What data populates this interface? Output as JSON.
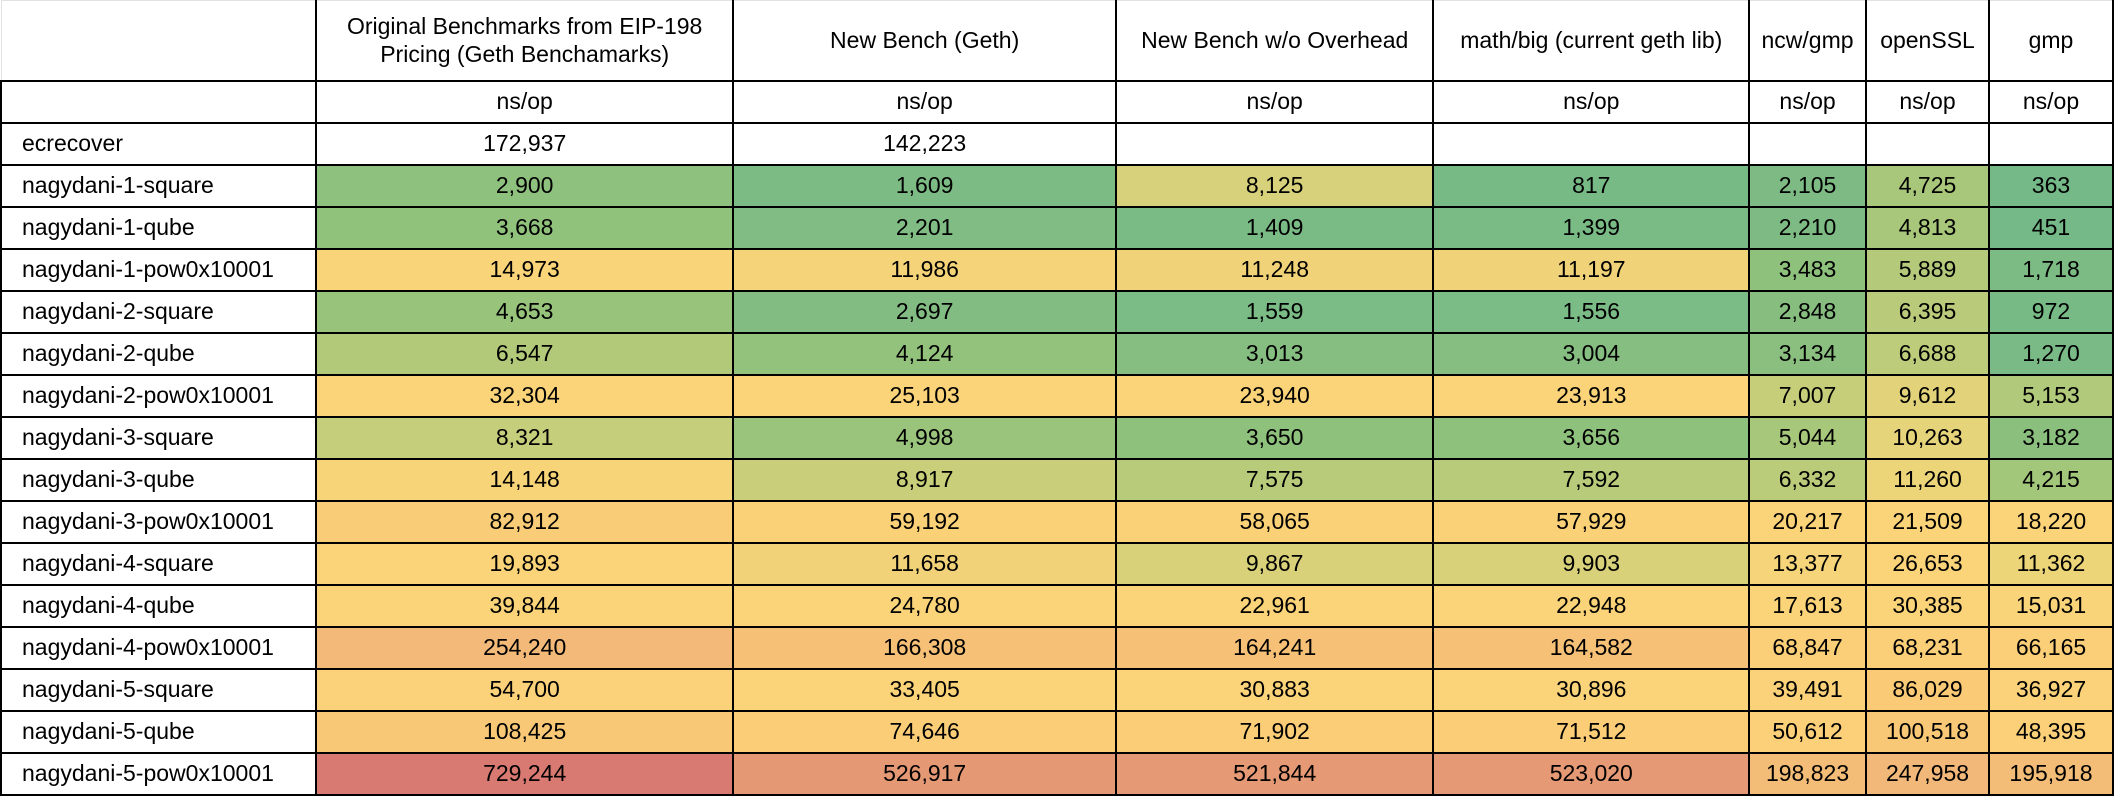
{
  "columns": [
    {
      "header": "",
      "unit": ""
    },
    {
      "header": "Original Benchmarks from EIP-198 Pricing (Geth Benchamarks)",
      "unit": "ns/op"
    },
    {
      "header": "New Bench (Geth)",
      "unit": "ns/op"
    },
    {
      "header": "New Bench w/o Overhead",
      "unit": "ns/op"
    },
    {
      "header": "math/big (current geth lib)",
      "unit": "ns/op"
    },
    {
      "header": "ncw/gmp",
      "unit": "ns/op"
    },
    {
      "header": "openSSL",
      "unit": "ns/op"
    },
    {
      "header": "gmp",
      "unit": "ns/op"
    }
  ],
  "rows": [
    {
      "label": "ecrecover",
      "cells": [
        {
          "value": "172,937",
          "color": "#ffffff"
        },
        {
          "value": "142,223",
          "color": "#ffffff"
        },
        {
          "value": "",
          "color": "#ffffff"
        },
        {
          "value": "",
          "color": "#ffffff"
        },
        {
          "value": "",
          "color": "#ffffff"
        },
        {
          "value": "",
          "color": "#ffffff"
        },
        {
          "value": "",
          "color": "#ffffff"
        }
      ]
    },
    {
      "label": "nagydani-1-square",
      "cells": [
        {
          "value": "2,900",
          "color": "#8dc17d"
        },
        {
          "value": "1,609",
          "color": "#7dbb85"
        },
        {
          "value": "8,125",
          "color": "#d6d17a"
        },
        {
          "value": "817",
          "color": "#77ba86"
        },
        {
          "value": "2,105",
          "color": "#7ebb84"
        },
        {
          "value": "4,725",
          "color": "#a8c77a"
        },
        {
          "value": "363",
          "color": "#74b987"
        }
      ]
    },
    {
      "label": "nagydani-1-qube",
      "cells": [
        {
          "value": "3,668",
          "color": "#90c27c"
        },
        {
          "value": "2,201",
          "color": "#80bc84"
        },
        {
          "value": "1,409",
          "color": "#7abb85"
        },
        {
          "value": "1,399",
          "color": "#7abb85"
        },
        {
          "value": "2,210",
          "color": "#7ebb84"
        },
        {
          "value": "4,813",
          "color": "#a8c77a"
        },
        {
          "value": "451",
          "color": "#74b987"
        }
      ]
    },
    {
      "label": "nagydani-1-pow0x10001",
      "cells": [
        {
          "value": "14,973",
          "color": "#fad478"
        },
        {
          "value": "11,986",
          "color": "#f5d378"
        },
        {
          "value": "11,248",
          "color": "#f0d278"
        },
        {
          "value": "11,197",
          "color": "#f0d278"
        },
        {
          "value": "3,483",
          "color": "#8ec17c"
        },
        {
          "value": "5,889",
          "color": "#b4ca7a"
        },
        {
          "value": "1,718",
          "color": "#7dbb85"
        }
      ]
    },
    {
      "label": "nagydani-2-square",
      "cells": [
        {
          "value": "4,653",
          "color": "#98c37b"
        },
        {
          "value": "2,697",
          "color": "#82bc83"
        },
        {
          "value": "1,559",
          "color": "#7bbb85"
        },
        {
          "value": "1,556",
          "color": "#7bbb85"
        },
        {
          "value": "2,848",
          "color": "#87be80"
        },
        {
          "value": "6,395",
          "color": "#b9cb7a"
        },
        {
          "value": "972",
          "color": "#77ba86"
        }
      ]
    },
    {
      "label": "nagydani-2-qube",
      "cells": [
        {
          "value": "6,547",
          "color": "#b2c97a"
        },
        {
          "value": "4,124",
          "color": "#92c27c"
        },
        {
          "value": "3,013",
          "color": "#86bd81"
        },
        {
          "value": "3,004",
          "color": "#86bd81"
        },
        {
          "value": "3,134",
          "color": "#8abf7f"
        },
        {
          "value": "6,688",
          "color": "#bdcc7a"
        },
        {
          "value": "1,270",
          "color": "#79ba86"
        }
      ]
    },
    {
      "label": "nagydani-2-pow0x10001",
      "cells": [
        {
          "value": "32,304",
          "color": "#fbd479"
        },
        {
          "value": "25,103",
          "color": "#fbd479"
        },
        {
          "value": "23,940",
          "color": "#fbd479"
        },
        {
          "value": "23,913",
          "color": "#fbd479"
        },
        {
          "value": "7,007",
          "color": "#c6ce7a"
        },
        {
          "value": "9,612",
          "color": "#e2d37a"
        },
        {
          "value": "5,153",
          "color": "#b1c97a"
        }
      ]
    },
    {
      "label": "nagydani-3-square",
      "cells": [
        {
          "value": "8,321",
          "color": "#c5ce7a"
        },
        {
          "value": "4,998",
          "color": "#9ac47b"
        },
        {
          "value": "3,650",
          "color": "#8ec17c"
        },
        {
          "value": "3,656",
          "color": "#8ec17c"
        },
        {
          "value": "5,044",
          "color": "#a7c77a"
        },
        {
          "value": "10,263",
          "color": "#e6d47a"
        },
        {
          "value": "3,182",
          "color": "#8bbf7e"
        }
      ]
    },
    {
      "label": "nagydani-3-qube",
      "cells": [
        {
          "value": "14,148",
          "color": "#f8d478"
        },
        {
          "value": "8,917",
          "color": "#c8ce7a"
        },
        {
          "value": "7,575",
          "color": "#b8cb7a"
        },
        {
          "value": "7,592",
          "color": "#b8cb7a"
        },
        {
          "value": "6,332",
          "color": "#bacb7a"
        },
        {
          "value": "11,260",
          "color": "#ecd579"
        },
        {
          "value": "4,215",
          "color": "#a2c67a"
        }
      ]
    },
    {
      "label": "nagydani-3-pow0x10001",
      "cells": [
        {
          "value": "82,912",
          "color": "#f9cd77"
        },
        {
          "value": "59,192",
          "color": "#fbd178"
        },
        {
          "value": "58,065",
          "color": "#fbd178"
        },
        {
          "value": "57,929",
          "color": "#fbd178"
        },
        {
          "value": "20,217",
          "color": "#fbd479"
        },
        {
          "value": "21,509",
          "color": "#fbd479"
        },
        {
          "value": "18,220",
          "color": "#fbd479"
        }
      ]
    },
    {
      "label": "nagydani-4-square",
      "cells": [
        {
          "value": "19,893",
          "color": "#fbd479"
        },
        {
          "value": "11,658",
          "color": "#f2d278"
        },
        {
          "value": "9,867",
          "color": "#d9d17a"
        },
        {
          "value": "9,903",
          "color": "#d9d17a"
        },
        {
          "value": "13,377",
          "color": "#f6d479"
        },
        {
          "value": "26,653",
          "color": "#fbd379"
        },
        {
          "value": "11,362",
          "color": "#ecd579"
        }
      ]
    },
    {
      "label": "nagydani-4-qube",
      "cells": [
        {
          "value": "39,844",
          "color": "#fbd479"
        },
        {
          "value": "24,780",
          "color": "#fbd479"
        },
        {
          "value": "22,961",
          "color": "#fbd479"
        },
        {
          "value": "22,948",
          "color": "#fbd479"
        },
        {
          "value": "17,613",
          "color": "#fbd479"
        },
        {
          "value": "30,385",
          "color": "#fbd379"
        },
        {
          "value": "15,031",
          "color": "#f9d479"
        }
      ]
    },
    {
      "label": "nagydani-4-pow0x10001",
      "cells": [
        {
          "value": "254,240",
          "color": "#f2b979"
        },
        {
          "value": "166,308",
          "color": "#f6c177"
        },
        {
          "value": "164,241",
          "color": "#f6c177"
        },
        {
          "value": "164,582",
          "color": "#f6c177"
        },
        {
          "value": "68,847",
          "color": "#fbcf78"
        },
        {
          "value": "68,231",
          "color": "#fbcf78"
        },
        {
          "value": "66,165",
          "color": "#fbcf78"
        }
      ]
    },
    {
      "label": "nagydani-5-square",
      "cells": [
        {
          "value": "54,700",
          "color": "#fbd279"
        },
        {
          "value": "33,405",
          "color": "#fbd379"
        },
        {
          "value": "30,883",
          "color": "#fbd379"
        },
        {
          "value": "30,896",
          "color": "#fbd379"
        },
        {
          "value": "39,491",
          "color": "#fbd279"
        },
        {
          "value": "86,029",
          "color": "#faca77"
        },
        {
          "value": "36,927",
          "color": "#fbd279"
        }
      ]
    },
    {
      "label": "nagydani-5-qube",
      "cells": [
        {
          "value": "108,425",
          "color": "#f9c877"
        },
        {
          "value": "74,646",
          "color": "#fbcd77"
        },
        {
          "value": "71,902",
          "color": "#fbcd77"
        },
        {
          "value": "71,512",
          "color": "#fbcd77"
        },
        {
          "value": "50,612",
          "color": "#fbd078"
        },
        {
          "value": "100,518",
          "color": "#f9c877"
        },
        {
          "value": "48,395",
          "color": "#fbd078"
        }
      ]
    },
    {
      "label": "nagydani-5-pow0x10001",
      "cells": [
        {
          "value": "729,244",
          "color": "#d97a72"
        },
        {
          "value": "526,917",
          "color": "#e59874"
        },
        {
          "value": "521,844",
          "color": "#e59974"
        },
        {
          "value": "523,020",
          "color": "#e59974"
        },
        {
          "value": "198,823",
          "color": "#f4bd77"
        },
        {
          "value": "247,958",
          "color": "#f2b879"
        },
        {
          "value": "195,918",
          "color": "#f4bd77"
        }
      ]
    }
  ]
}
